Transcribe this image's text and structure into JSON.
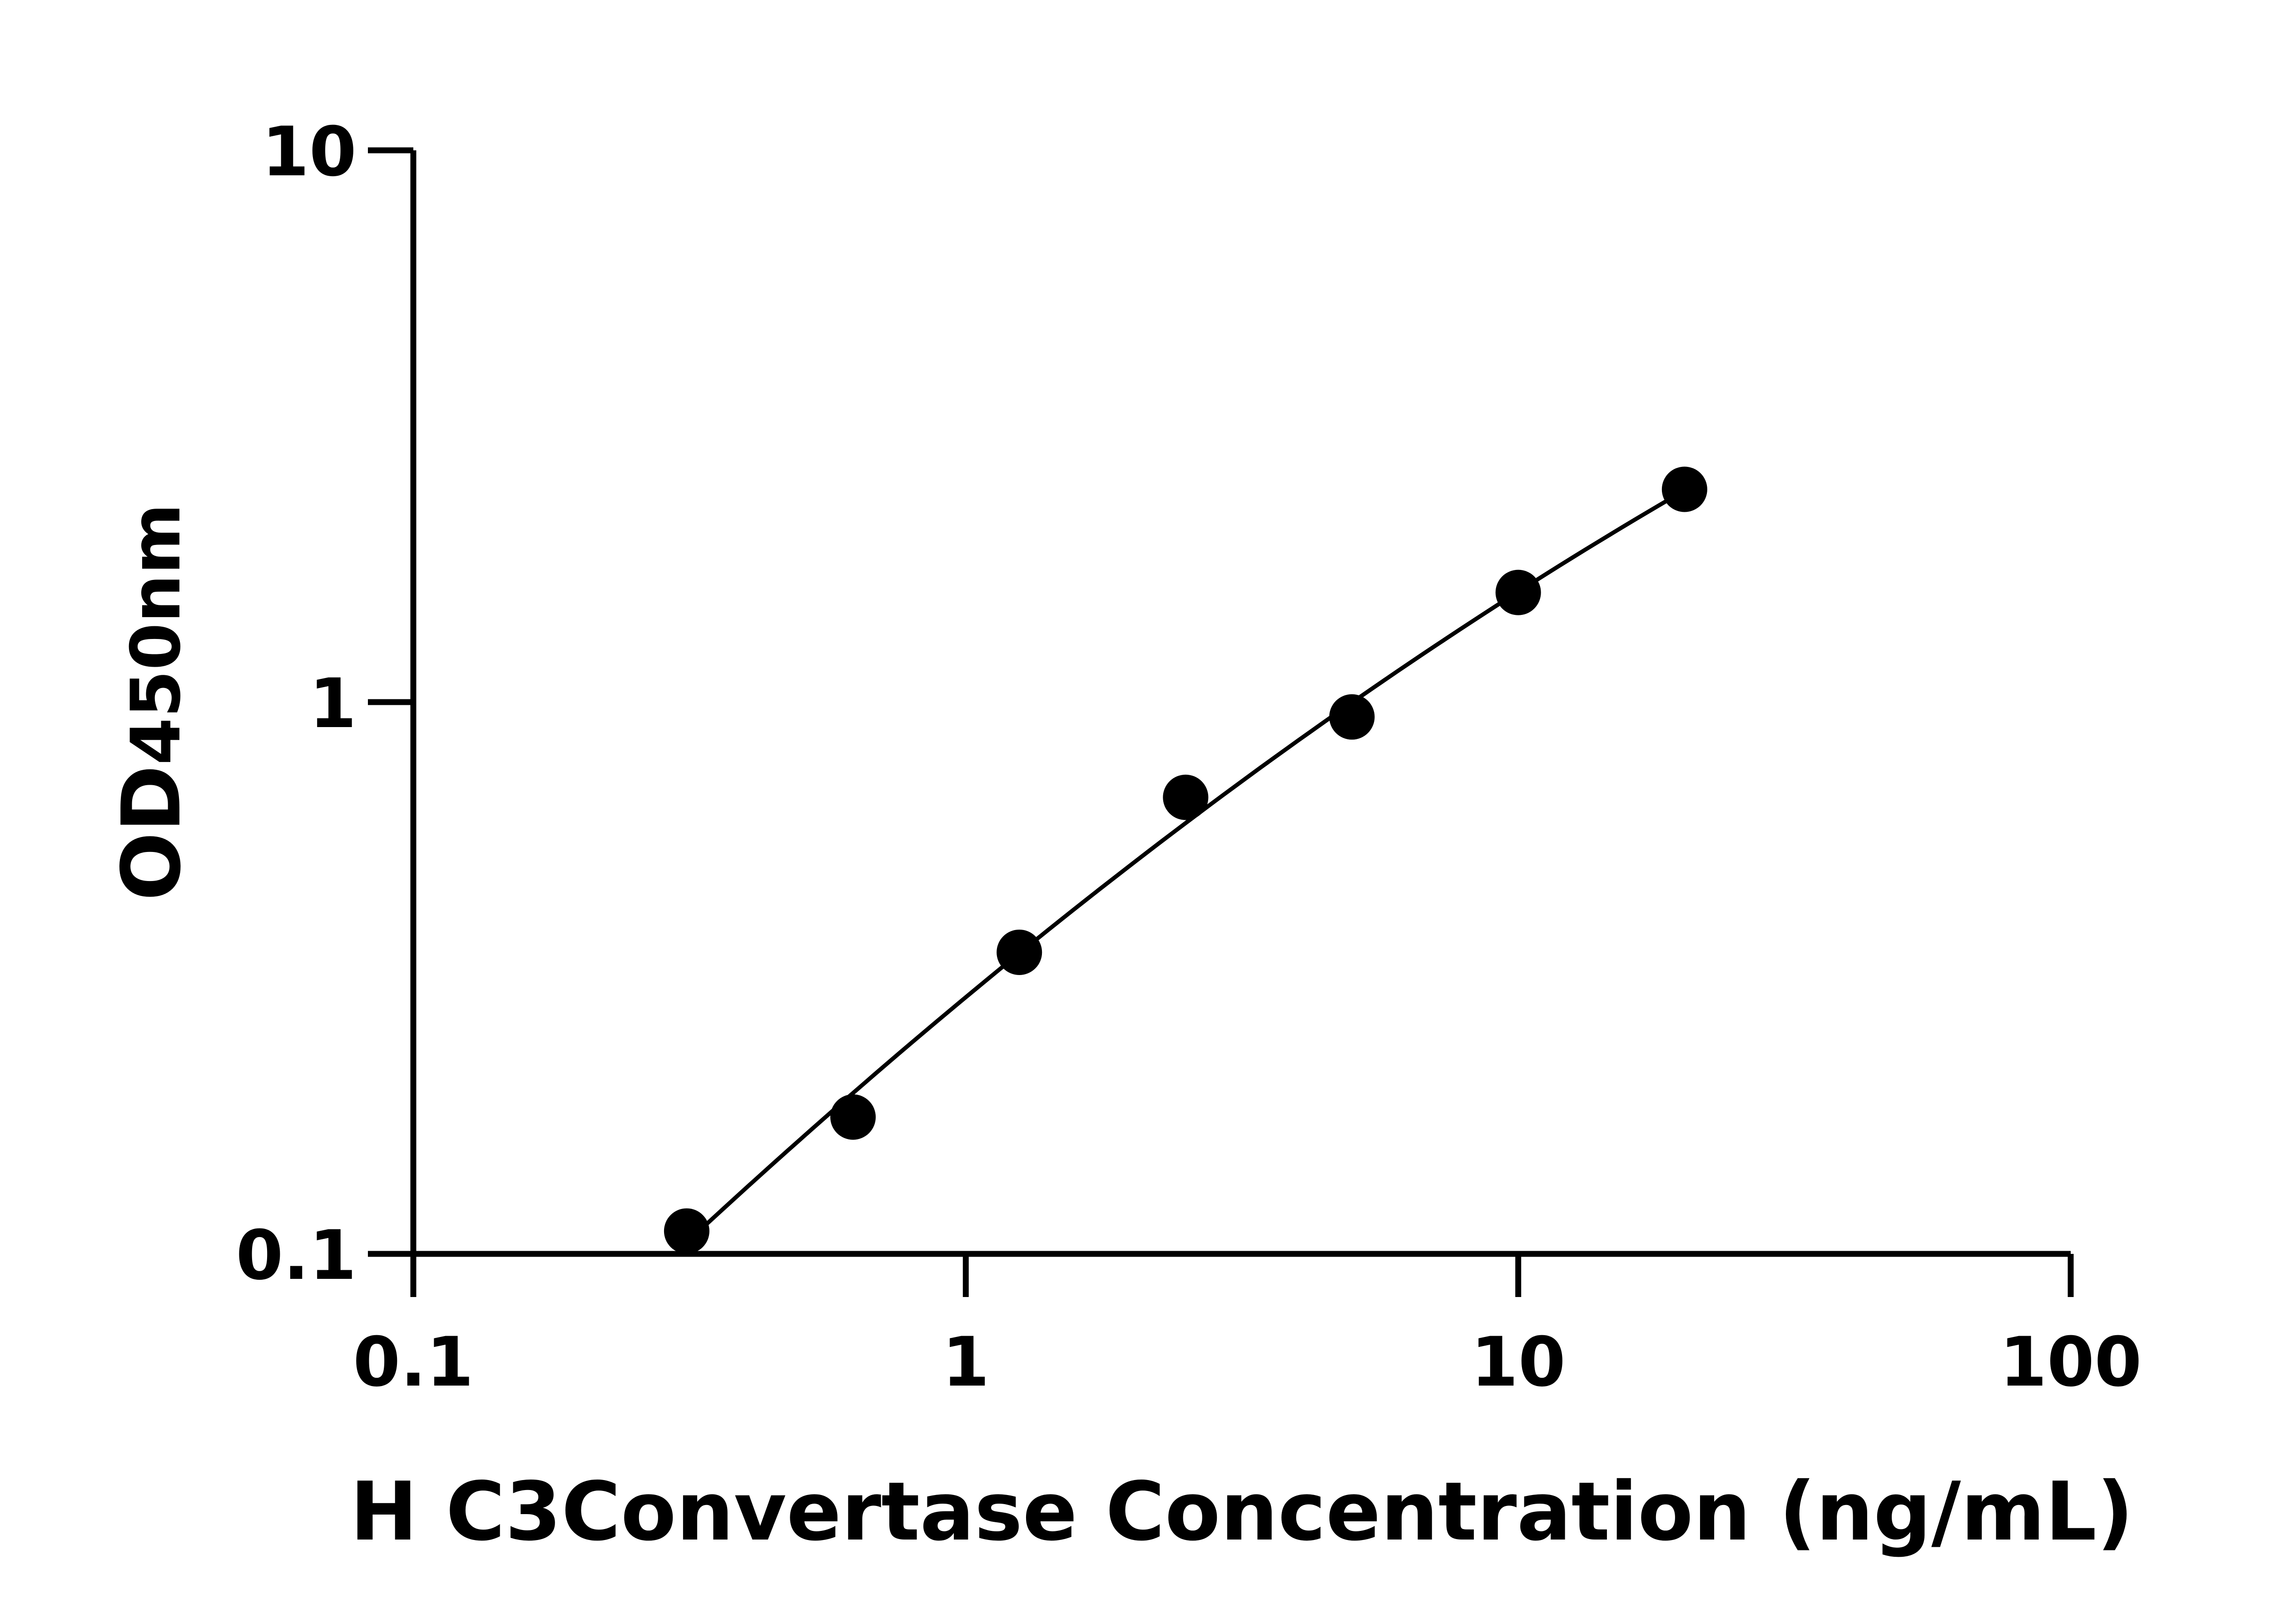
{
  "chart_data": {
    "type": "scatter",
    "xlabel": "H C3Convertase Concentration (ng/mL)",
    "ylabel": "OD",
    "ylabel_sub": "450nm",
    "x_scale": "log",
    "y_scale": "log",
    "xlim": [
      0.1,
      100
    ],
    "ylim": [
      0.1,
      10
    ],
    "x_ticks": [
      "0.1",
      "1",
      "10",
      "100"
    ],
    "y_ticks": [
      "0.1",
      "1",
      "10"
    ],
    "grid": false,
    "marker_color": "#000000",
    "fit_line": true,
    "points": [
      {
        "x": 0.3125,
        "y": 0.11
      },
      {
        "x": 0.625,
        "y": 0.177
      },
      {
        "x": 1.25,
        "y": 0.352
      },
      {
        "x": 2.5,
        "y": 0.672
      },
      {
        "x": 5,
        "y": 0.94
      },
      {
        "x": 10,
        "y": 1.58
      },
      {
        "x": 20,
        "y": 2.43
      }
    ]
  }
}
